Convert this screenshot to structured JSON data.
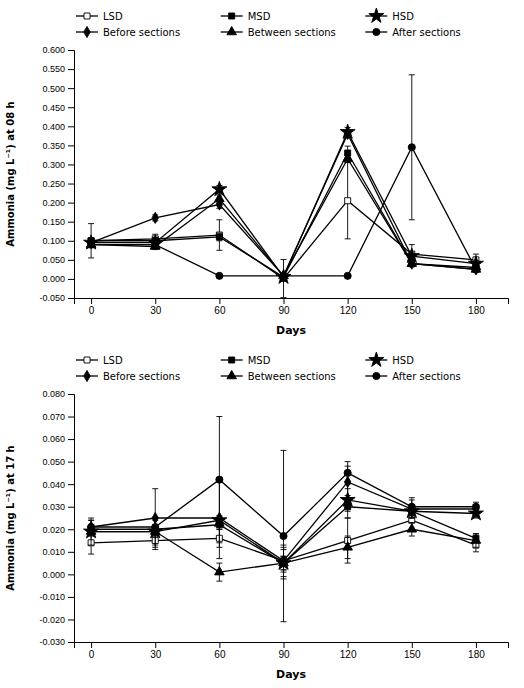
{
  "chart_data": [
    {
      "type": "line",
      "x": [
        0,
        30,
        60,
        90,
        120,
        150,
        180
      ],
      "xlabel": "Days",
      "ylabel": "Ammonia (mg L⁻¹) at 08 h",
      "xlim": [
        -8,
        195
      ],
      "xticks": [
        0,
        30,
        60,
        90,
        120,
        150,
        180
      ],
      "ylim": [
        -0.05,
        0.6
      ],
      "yticks": [
        {
          "value": -0.05,
          "label": "-0.050"
        },
        {
          "value": 0,
          "label": "0.000"
        },
        {
          "value": 0.05,
          "label": "0.050"
        },
        {
          "value": 0.1,
          "label": "0.100"
        },
        {
          "value": 0.15,
          "label": "0.150"
        },
        {
          "value": 0.2,
          "label": "0.200"
        },
        {
          "value": 0.25,
          "label": "0.250"
        },
        {
          "value": 0.3,
          "label": "0.300"
        },
        {
          "value": 0.35,
          "label": "0.350"
        },
        {
          "value": 0.4,
          "label": "0.400"
        },
        {
          "value": 0.45,
          "label": "0.450"
        },
        {
          "value": 0.5,
          "label": "0.500"
        },
        {
          "value": 0.55,
          "label": "0.550"
        },
        {
          "value": 0.6,
          "label": "0.600"
        }
      ],
      "grid": false,
      "legend": "upper left",
      "series": [
        {
          "name": "LSD",
          "color": "#000000",
          "marker": "square-open",
          "values": [
            0.1,
            0.105,
            0.115,
            0.001,
            0.205,
            0.065,
            0.05
          ],
          "yerr": [
            0.045,
            0.012,
            0.04,
            0.05,
            0.1,
            0.025,
            0.015
          ]
        },
        {
          "name": "MSD",
          "color": "#000000",
          "marker": "square",
          "values": [
            0.1,
            0.1,
            0.11,
            0.005,
            0.33,
            0.04,
            0.03
          ],
          "yerr": [
            0.008,
            0.008,
            0.01,
            0.004,
            0.018,
            0.008,
            0.007
          ]
        },
        {
          "name": "HSD",
          "color": "#000000",
          "marker": "star",
          "values": [
            0.095,
            0.095,
            0.235,
            0.005,
            0.385,
            0.06,
            0.04
          ],
          "yerr": [
            0.008,
            0.008,
            0.01,
            0.004,
            0.012,
            0.005,
            0.007
          ]
        },
        {
          "name": "Before sections",
          "color": "#000000",
          "marker": "diamond",
          "values": [
            0.095,
            0.16,
            0.195,
            0.008,
            0.38,
            0.04,
            0.025
          ],
          "yerr": [
            0.008,
            0.008,
            0.01,
            0.004,
            0.01,
            0.004,
            0.004
          ]
        },
        {
          "name": "Between sections",
          "color": "#000000",
          "marker": "triangle-up",
          "values": [
            0.09,
            0.085,
            0.21,
            0.008,
            0.315,
            0.04,
            0.025
          ],
          "yerr": [
            0.008,
            0.008,
            0.01,
            0.004,
            0.01,
            0.004,
            0.004
          ]
        },
        {
          "name": "After sections",
          "color": "#000000",
          "marker": "circle",
          "values": [
            0.09,
            0.09,
            0.008,
            0.008,
            0.008,
            0.345,
            0.025
          ],
          "yerr": [
            0.008,
            0.008,
            0.004,
            0.004,
            0.004,
            0.19,
            0.008
          ]
        }
      ]
    },
    {
      "type": "line",
      "x": [
        0,
        30,
        60,
        90,
        120,
        150,
        180
      ],
      "xlabel": "Days",
      "ylabel": "Ammonia (mg L⁻¹) at 17 h",
      "xlim": [
        -8,
        195
      ],
      "xticks": [
        0,
        30,
        60,
        90,
        120,
        150,
        180
      ],
      "ylim": [
        -0.03,
        0.08
      ],
      "yticks": [
        {
          "value": -0.03,
          "label": "-0.030"
        },
        {
          "value": -0.02,
          "label": "-0.020"
        },
        {
          "value": -0.01,
          "label": "-0.010"
        },
        {
          "value": 0,
          "label": "0.000"
        },
        {
          "value": 0.01,
          "label": "0.010"
        },
        {
          "value": 0.02,
          "label": "0.020"
        },
        {
          "value": 0.03,
          "label": "0.030"
        },
        {
          "value": 0.04,
          "label": "0.040"
        },
        {
          "value": 0.05,
          "label": "0.050"
        },
        {
          "value": 0.06,
          "label": "0.060"
        },
        {
          "value": 0.07,
          "label": "0.070"
        },
        {
          "value": 0.08,
          "label": "0.080"
        }
      ],
      "grid": false,
      "legend": "upper left",
      "series": [
        {
          "name": "LSD",
          "color": "#000000",
          "marker": "square-open",
          "values": [
            0.014,
            0.015,
            0.016,
            0.006,
            0.015,
            0.024,
            0.013
          ],
          "yerr": [
            0.005,
            0.004,
            0.004,
            0.005,
            0.01,
            0.004,
            0.003
          ]
        },
        {
          "name": "MSD",
          "color": "#000000",
          "marker": "square",
          "values": [
            0.02,
            0.02,
            0.022,
            0.005,
            0.03,
            0.028,
            0.016
          ],
          "yerr": [
            0.002,
            0.002,
            0.002,
            0.003,
            0.005,
            0.003,
            0.002
          ]
        },
        {
          "name": "HSD",
          "color": "#000000",
          "marker": "star",
          "values": [
            0.019,
            0.019,
            0.024,
            0.005,
            0.033,
            0.028,
            0.027
          ],
          "yerr": [
            0.002,
            0.002,
            0.002,
            0.003,
            0.005,
            0.003,
            0.002
          ]
        },
        {
          "name": "Before sections",
          "color": "#000000",
          "marker": "diamond",
          "values": [
            0.021,
            0.025,
            0.025,
            0.006,
            0.041,
            0.029,
            0.029
          ],
          "yerr": [
            0.003,
            0.013,
            0.018,
            0.007,
            0.007,
            0.004,
            0.002
          ]
        },
        {
          "name": "Between sections",
          "color": "#000000",
          "marker": "triangle-up",
          "values": [
            0.019,
            0.019,
            0.001,
            0.005,
            0.012,
            0.02,
            0.015
          ],
          "yerr": [
            0.006,
            0.006,
            0.004,
            0.007,
            0.005,
            0.003,
            0.003
          ]
        },
        {
          "name": "After sections",
          "color": "#000000",
          "marker": "circle",
          "values": [
            0.021,
            0.021,
            0.042,
            0.017,
            0.045,
            0.03,
            0.03
          ],
          "yerr": [
            0.003,
            0.003,
            0.028,
            0.038,
            0.005,
            0.004,
            0.002
          ]
        }
      ]
    }
  ]
}
